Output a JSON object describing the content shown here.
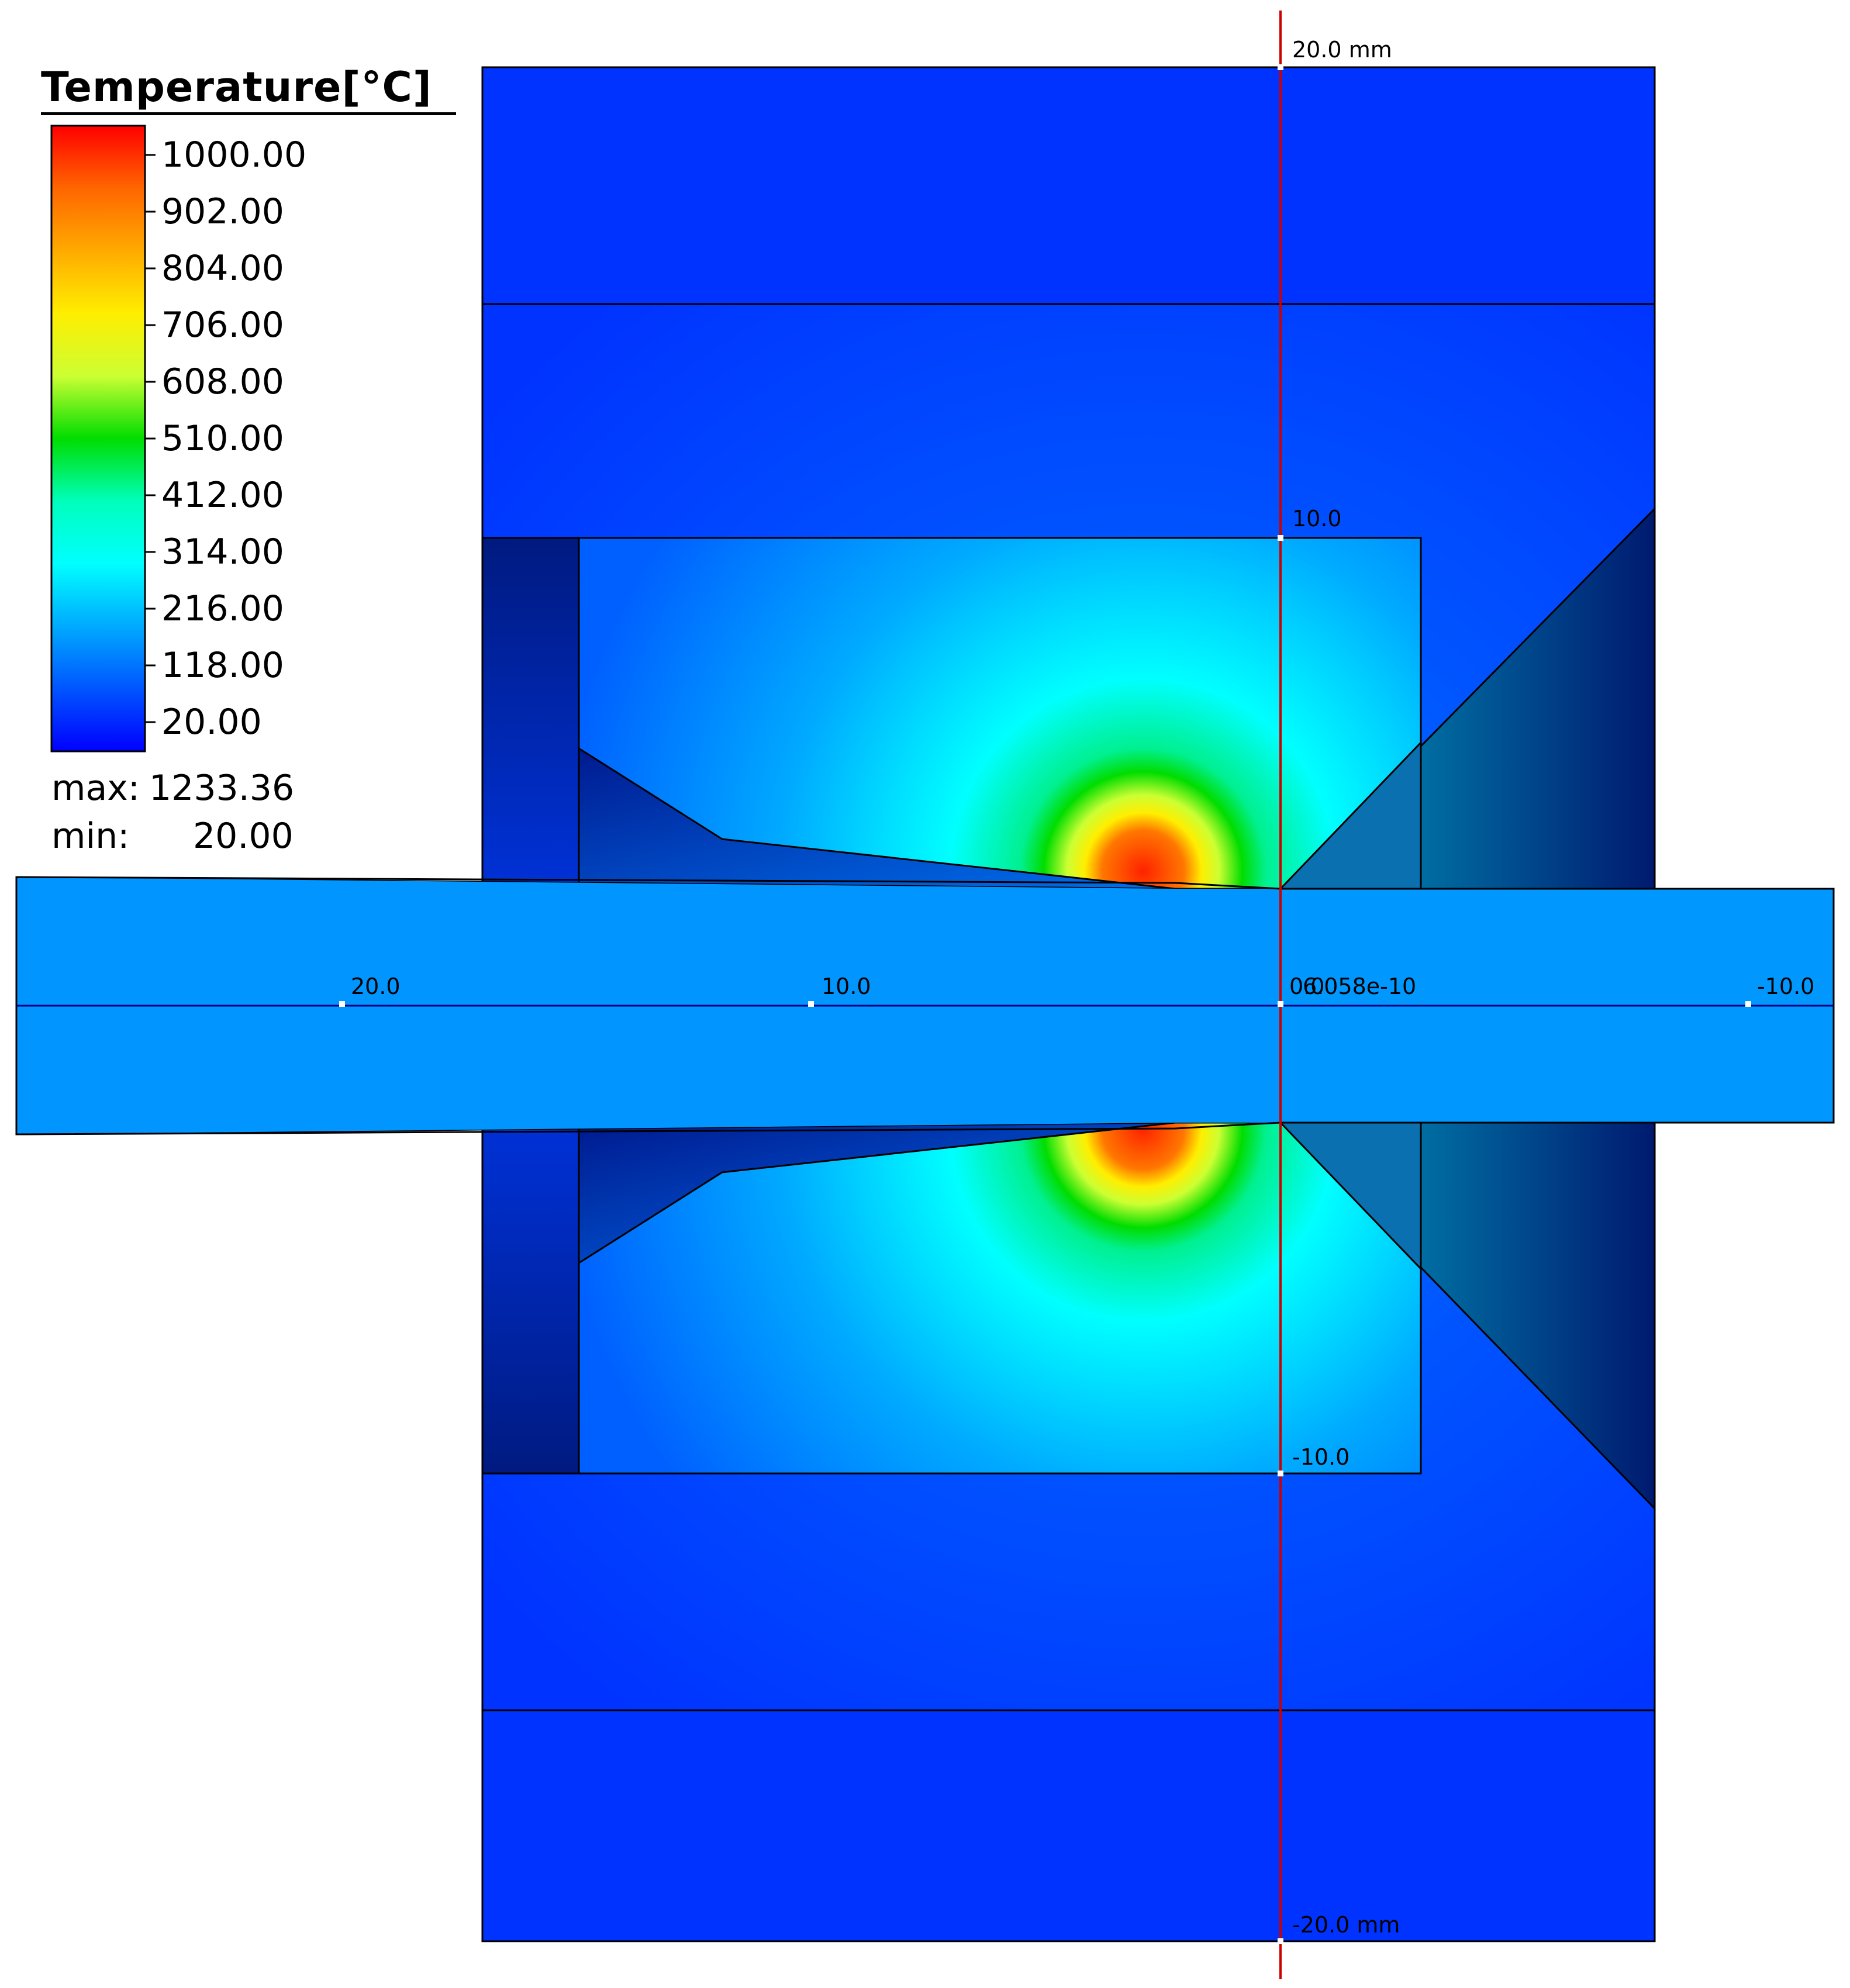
{
  "legend": {
    "title": "Temperature[°C]",
    "ticks": [
      "1000.00",
      "902.00",
      "804.00",
      "706.00",
      "608.00",
      "510.00",
      "412.00",
      "314.00",
      "216.00",
      "118.00",
      "20.00"
    ],
    "max_label": "max:",
    "max_value": "1233.36",
    "min_label": "min:",
    "min_value": "20.00",
    "colormap": [
      "#ff0000",
      "#ff6600",
      "#ffaa00",
      "#ffee00",
      "#ccff33",
      "#00dd00",
      "#00ffbb",
      "#00ffff",
      "#00aaff",
      "#0055ff",
      "#0000ff"
    ]
  },
  "axis_labels": {
    "y_top": "20.0 mm",
    "y_10": "10.0",
    "y_neg10": "-10.0",
    "y_bottom": "-20.0 mm",
    "x_20": "20.0",
    "x_10": "10.0",
    "x_origin": "0.0",
    "x_origin_overlap": "6.058e-10",
    "x_neg10": "-10.0"
  },
  "colors": {
    "background": "#ffffff",
    "outer_block": "#0033ff",
    "inner_block": "#0044ff",
    "rod": "#0097ff",
    "dark_region": "#001a80",
    "vertical_axis": "#cc0000",
    "horizontal_axis": "#000080",
    "hot_core": "#ff3300",
    "hot_ring": "#00dd00"
  },
  "stats_region_note": ""
}
